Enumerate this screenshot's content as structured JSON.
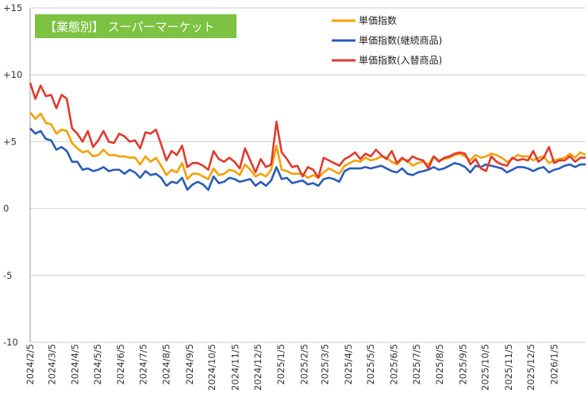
{
  "chart_data": {
    "type": "line",
    "title": "【業態別】 スーパーマーケット",
    "xlabel": "",
    "ylabel": "",
    "ylim": [
      -10,
      15
    ],
    "y_ticks": [
      15,
      10,
      5,
      0,
      -5,
      -10
    ],
    "y_tick_labels": [
      "+15",
      "+10",
      "+5",
      "0",
      "-5",
      "-10"
    ],
    "x_tick_labels": [
      "2024/2/5",
      "2024/3/5",
      "2024/4/5",
      "2024/5/5",
      "2024/6/5",
      "2024/7/5",
      "2024/8/5",
      "2024/9/5",
      "2024/10/5",
      "2024/11/5",
      "2024/12/5",
      "2025/1/5",
      "2025/2/5",
      "2025/3/5",
      "2025/4/5",
      "2025/5/5",
      "2025/6/5",
      "2025/7/5",
      "2025/8/5",
      "2025/9/5",
      "2025/10/5",
      "2025/11/5",
      "2025/12/5",
      "2026/1/5"
    ],
    "x_start": "2024/2/5",
    "interval_days": 7,
    "grid": true,
    "legend_position": "top-right",
    "title_box_color": "#7dc242",
    "series": [
      {
        "name": "単価指数",
        "color": "#f5a000",
        "values": [
          7.2,
          6.7,
          7.1,
          6.4,
          6.3,
          5.6,
          5.9,
          5.8,
          4.9,
          4.5,
          4.2,
          4.3,
          3.9,
          4.0,
          4.4,
          4.0,
          4.0,
          3.9,
          3.9,
          3.8,
          3.8,
          3.3,
          3.9,
          3.5,
          3.8,
          3.2,
          2.5,
          2.9,
          2.7,
          3.4,
          2.2,
          2.6,
          2.6,
          2.4,
          2.2,
          3.0,
          2.5,
          2.6,
          2.9,
          2.8,
          2.5,
          3.3,
          2.9,
          2.4,
          2.6,
          2.4,
          2.9,
          4.7,
          2.9,
          2.8,
          2.6,
          2.6,
          2.6,
          2.3,
          2.5,
          2.3,
          2.7,
          3.0,
          2.8,
          2.6,
          3.2,
          3.4,
          3.6,
          3.5,
          3.8,
          3.6,
          3.7,
          3.9,
          3.8,
          3.5,
          3.3,
          3.7,
          3.6,
          3.2,
          3.4,
          3.5,
          3.3,
          3.9,
          3.6,
          3.7,
          3.8,
          4.0,
          4.1,
          3.9,
          3.6,
          4.0,
          3.8,
          3.9,
          4.1,
          4.0,
          3.8,
          3.5,
          3.7,
          4.0,
          3.9,
          3.9,
          3.6,
          3.8,
          3.9,
          3.4,
          3.6,
          3.7,
          3.8,
          4.1,
          3.8,
          4.2,
          4.0
        ]
      },
      {
        "name": "単価指数(継続商品)",
        "color": "#2a5cb8",
        "values": [
          6.0,
          5.6,
          5.8,
          5.2,
          5.1,
          4.4,
          4.6,
          4.3,
          3.5,
          3.5,
          2.9,
          3.0,
          2.8,
          2.9,
          3.1,
          2.8,
          2.9,
          2.9,
          2.6,
          2.9,
          2.7,
          2.3,
          2.8,
          2.5,
          2.6,
          2.3,
          1.7,
          2.0,
          1.9,
          2.3,
          1.4,
          1.8,
          2.0,
          1.8,
          1.4,
          2.4,
          1.9,
          2.0,
          2.3,
          2.2,
          2.0,
          2.1,
          2.2,
          1.7,
          2.0,
          1.7,
          2.1,
          3.1,
          2.2,
          2.3,
          1.9,
          2.0,
          2.1,
          1.8,
          1.9,
          1.7,
          2.2,
          2.3,
          2.2,
          2.0,
          2.8,
          3.0,
          3.0,
          3.0,
          3.1,
          3.0,
          3.1,
          3.2,
          3.0,
          2.8,
          2.7,
          3.0,
          2.6,
          2.5,
          2.7,
          2.8,
          2.9,
          3.1,
          2.9,
          3.0,
          3.2,
          3.4,
          3.3,
          3.1,
          2.7,
          3.2,
          3.1,
          3.3,
          3.2,
          3.1,
          3.0,
          2.7,
          2.9,
          3.1,
          3.1,
          3.0,
          2.8,
          3.0,
          3.1,
          2.7,
          2.9,
          3.0,
          3.2,
          3.3,
          3.1,
          3.3,
          3.3
        ]
      },
      {
        "name": "単価指数(入替商品)",
        "color": "#e03a2e",
        "values": [
          9.4,
          8.2,
          9.2,
          8.4,
          8.5,
          7.5,
          8.5,
          8.2,
          6.0,
          5.6,
          5.0,
          5.8,
          4.6,
          5.1,
          5.8,
          5.0,
          4.9,
          5.6,
          5.4,
          5.0,
          5.1,
          4.5,
          5.7,
          5.6,
          5.9,
          4.8,
          3.6,
          4.3,
          4.0,
          4.7,
          3.1,
          3.4,
          3.4,
          3.2,
          2.9,
          4.3,
          3.7,
          3.5,
          3.8,
          3.5,
          3.0,
          4.5,
          3.6,
          2.7,
          3.7,
          3.1,
          3.3,
          6.5,
          4.2,
          3.7,
          3.1,
          3.2,
          2.4,
          3.1,
          2.9,
          2.3,
          3.8,
          3.6,
          3.4,
          3.2,
          3.7,
          3.9,
          4.2,
          3.7,
          4.1,
          3.9,
          4.4,
          4.0,
          3.7,
          4.3,
          3.4,
          3.8,
          3.5,
          3.9,
          3.7,
          3.6,
          3.0,
          3.9,
          3.5,
          3.8,
          3.9,
          4.1,
          4.2,
          4.1,
          3.3,
          3.7,
          3.0,
          2.8,
          3.9,
          3.5,
          3.3,
          3.2,
          3.8,
          3.6,
          3.7,
          3.6,
          4.3,
          3.5,
          3.8,
          4.6,
          3.4,
          3.6,
          3.6,
          3.9,
          3.5,
          3.8,
          3.8
        ]
      }
    ]
  }
}
